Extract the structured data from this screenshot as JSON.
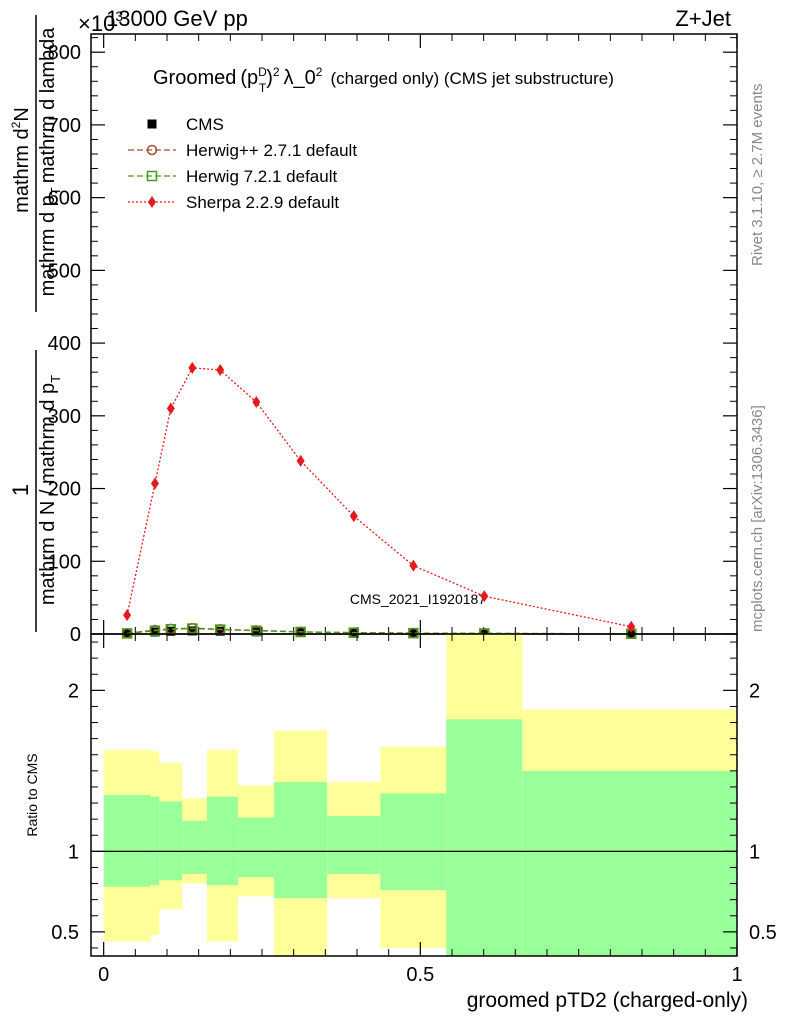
{
  "header": {
    "left": "13000 GeV pp",
    "right": "Z+Jet",
    "exponent": "×10",
    "exponent_power": "3"
  },
  "side_labels": {
    "rivet": "Rivet 3.1.10, ≥ 2.7M events",
    "mcplots": "mcplots.cern.ch [arXiv:1306.3436]"
  },
  "watermark": "CMS_2021_I1920187",
  "chart_data": [
    {
      "type": "line",
      "title_prefix": "Groomed",
      "title_math_base": "(p",
      "title_math_sup": "D",
      "title_math_sub": "T",
      "title_math_close": ")",
      "title_math_sup2": "2",
      "title_lambda": "λ_0",
      "title_lambda_sup": "2",
      "title_suffix": "(charged only) (CMS jet substructure)",
      "ylabel_top_1": "1",
      "ylabel_bottom_1": "mathrm d N / mathrm d p",
      "ylabel_bottom_sub": "T",
      "ylabel_top_2": "mathrm d",
      "ylabel_top_2_sup": "2",
      "ylabel_top_2_end": "N",
      "ylabel_bottom_2": "mathrm d p",
      "ylabel_bottom_2_sub": "T",
      "ylabel_bottom_2_end": "mathrm d lambda",
      "ylim": [
        0,
        825
      ],
      "yticks": [
        0,
        100,
        200,
        300,
        400,
        500,
        600,
        700,
        800
      ],
      "ytick_labels": [
        "0",
        "100",
        "200",
        "300",
        "400",
        "500",
        "600",
        "700",
        "800"
      ],
      "xlim": [
        -0.02,
        1.0
      ],
      "legend_position": "top-left",
      "legend": [
        {
          "label": "CMS",
          "color": "#000000",
          "marker": "square-filled",
          "line": "none"
        },
        {
          "label": "Herwig++ 2.7.1 default",
          "color": "#a0522d",
          "marker": "circle-open",
          "line": "dashed"
        },
        {
          "label": "Herwig 7.2.1 default",
          "color": "#4a9a1a",
          "marker": "square-open",
          "line": "dashed"
        },
        {
          "label": "Sherpa 2.2.9 default",
          "color": "#e41a1c",
          "marker": "diamond-filled",
          "line": "dotted"
        }
      ],
      "series": [
        {
          "name": "CMS",
          "color": "#000000",
          "x": [
            0.037,
            0.081,
            0.106,
            0.14,
            0.184,
            0.241,
            0.311,
            0.395,
            0.489,
            0.601,
            0.833
          ],
          "y": [
            0.6,
            2.8,
            3.8,
            4.2,
            3.9,
            3.0,
            2.0,
            1.4,
            1.1,
            0.6,
            0.2
          ]
        },
        {
          "name": "Herwig++ 2.7.1 default",
          "color": "#a0522d",
          "x": [
            0.037,
            0.081,
            0.106,
            0.14,
            0.184,
            0.241,
            0.311,
            0.395,
            0.489,
            0.601,
            0.833
          ],
          "y": [
            1.0,
            5.5,
            7.0,
            8.0,
            6.5,
            5.0,
            3.0,
            2.0,
            1.3,
            0.9,
            0.3
          ]
        },
        {
          "name": "Herwig 7.2.1 default",
          "color": "#4a9a1a",
          "x": [
            0.037,
            0.081,
            0.106,
            0.14,
            0.184,
            0.241,
            0.311,
            0.395,
            0.489,
            0.601,
            0.833
          ],
          "y": [
            0.8,
            4.5,
            6.5,
            7.5,
            6.0,
            4.5,
            2.8,
            1.8,
            1.2,
            0.8,
            0.3
          ]
        },
        {
          "name": "Sherpa 2.2.9 default",
          "color": "#e41a1c",
          "x": [
            0.037,
            0.081,
            0.106,
            0.14,
            0.184,
            0.241,
            0.311,
            0.395,
            0.489,
            0.601,
            0.833
          ],
          "y": [
            26,
            207,
            310,
            366,
            363,
            319,
            238,
            162,
            94,
            52,
            10
          ]
        }
      ]
    },
    {
      "type": "area",
      "ylabel": "Ratio to CMS",
      "xlabel": "groomed pTD2 (charged-only)",
      "ylim": [
        0.35,
        2.35
      ],
      "xlim": [
        -0.02,
        1.0
      ],
      "yticks": [
        0.5,
        1,
        2
      ],
      "ytick_labels": [
        "0.5",
        "1",
        "2"
      ],
      "xticks": [
        0,
        0.5,
        1
      ],
      "xtick_labels": [
        "0",
        "0.5",
        "1"
      ],
      "reference_line": 1,
      "bands": [
        {
          "x0": 0.0,
          "x1": 0.074,
          "inner": [
            0.78,
            1.35
          ],
          "outer": [
            0.44,
            1.63
          ]
        },
        {
          "x0": 0.074,
          "x1": 0.088,
          "inner": [
            0.79,
            1.34
          ],
          "outer": [
            0.48,
            1.62
          ]
        },
        {
          "x0": 0.088,
          "x1": 0.124,
          "inner": [
            0.82,
            1.31
          ],
          "outer": [
            0.64,
            1.55
          ]
        },
        {
          "x0": 0.124,
          "x1": 0.163,
          "inner": [
            0.86,
            1.19
          ],
          "outer": [
            0.8,
            1.33
          ]
        },
        {
          "x0": 0.163,
          "x1": 0.212,
          "inner": [
            0.79,
            1.34
          ],
          "outer": [
            0.44,
            1.63
          ]
        },
        {
          "x0": 0.212,
          "x1": 0.269,
          "inner": [
            0.84,
            1.21
          ],
          "outer": [
            0.72,
            1.41
          ]
        },
        {
          "x0": 0.269,
          "x1": 0.353,
          "inner": [
            0.71,
            1.43
          ],
          "outer": [
            0.35,
            1.75
          ]
        },
        {
          "x0": 0.353,
          "x1": 0.437,
          "inner": [
            0.86,
            1.22
          ],
          "outer": [
            0.71,
            1.43
          ]
        },
        {
          "x0": 0.437,
          "x1": 0.541,
          "inner": [
            0.76,
            1.36
          ],
          "outer": [
            0.4,
            1.65
          ]
        },
        {
          "x0": 0.541,
          "x1": 0.661,
          "inner": [
            0.35,
            1.82
          ],
          "outer": [
            0.35,
            2.35
          ]
        },
        {
          "x0": 0.661,
          "x1": 1.0,
          "inner": [
            0.35,
            1.5
          ],
          "outer": [
            0.35,
            1.88
          ]
        }
      ]
    }
  ],
  "colors": {
    "inner_band": "#99ff99",
    "outer_band": "#ffff99",
    "side_text": "#888888"
  }
}
